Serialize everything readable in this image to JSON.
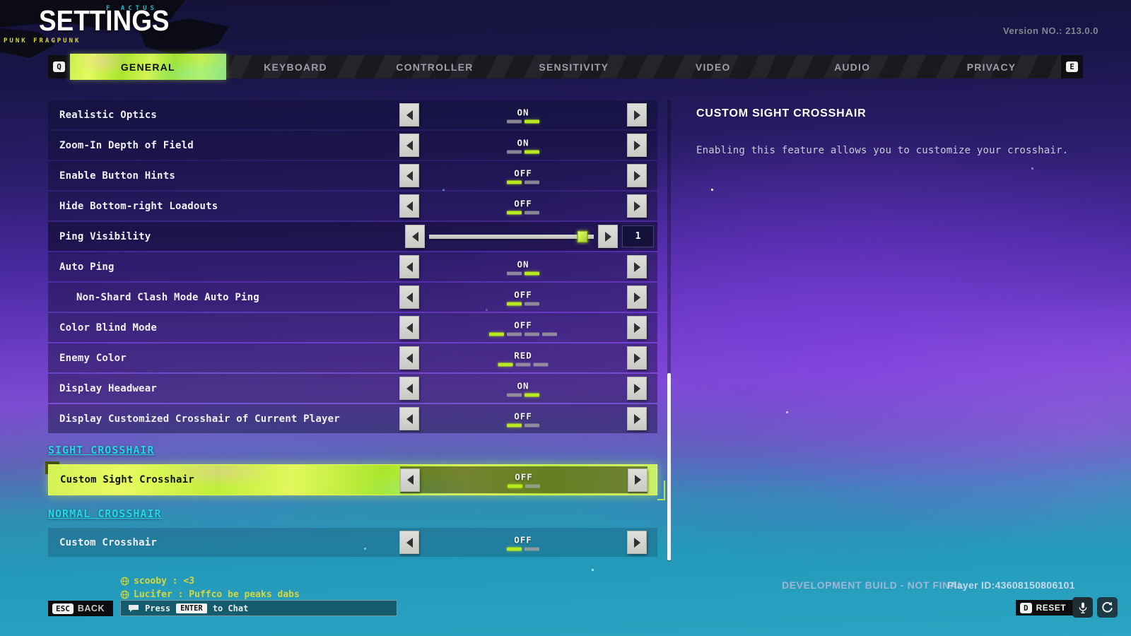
{
  "header": {
    "title": "SETTINGS",
    "version_label": "Version NO.: 213.0.0",
    "decor_left": "PUNK FRAGPUNK",
    "decor_top": "F ACTUS"
  },
  "tabs": {
    "left_key": "Q",
    "right_key": "E",
    "items": [
      {
        "label": "GENERAL",
        "active": true
      },
      {
        "label": "KEYBOARD",
        "active": false
      },
      {
        "label": "CONTROLLER",
        "active": false
      },
      {
        "label": "SENSITIVITY",
        "active": false
      },
      {
        "label": "VIDEO",
        "active": false
      },
      {
        "label": "AUDIO",
        "active": false
      },
      {
        "label": "PRIVACY",
        "active": false
      }
    ]
  },
  "settings": {
    "rows": [
      {
        "type": "toggle",
        "label": "Realistic Optics",
        "value": "ON",
        "options": 2,
        "selected": 1
      },
      {
        "type": "toggle",
        "label": "Zoom-In Depth of Field",
        "value": "ON",
        "options": 2,
        "selected": 1
      },
      {
        "type": "toggle",
        "label": "Enable Button Hints",
        "value": "OFF",
        "options": 2,
        "selected": 0
      },
      {
        "type": "toggle",
        "label": "Hide Bottom-right Loadouts",
        "value": "OFF",
        "options": 2,
        "selected": 0
      },
      {
        "type": "slider",
        "label": "Ping Visibility",
        "value": "1",
        "slider_pos": 0.93,
        "dark": true
      },
      {
        "type": "toggle",
        "label": "Auto Ping",
        "value": "ON",
        "options": 2,
        "selected": 1
      },
      {
        "type": "toggle",
        "label": "Non-Shard Clash Mode Auto Ping",
        "value": "OFF",
        "options": 2,
        "selected": 0,
        "indent": true
      },
      {
        "type": "toggle",
        "label": "Color Blind Mode",
        "value": "OFF",
        "options": 4,
        "selected": 0
      },
      {
        "type": "toggle",
        "label": "Enemy Color",
        "value": "RED",
        "options": 3,
        "selected": 0
      },
      {
        "type": "toggle",
        "label": "Display Headwear",
        "value": "ON",
        "options": 2,
        "selected": 1
      },
      {
        "type": "toggle",
        "label": "Display Customized Crosshair of Current Player",
        "value": "OFF",
        "options": 2,
        "selected": 0
      },
      {
        "type": "section",
        "label": "SIGHT CROSSHAIR"
      },
      {
        "type": "toggle",
        "label": "Custom Sight Crosshair",
        "value": "OFF",
        "options": 2,
        "selected": 0,
        "highlight": true
      },
      {
        "type": "section",
        "label": "NORMAL CROSSHAIR",
        "gap": true
      },
      {
        "type": "toggle",
        "label": "Custom Crosshair",
        "value": "OFF",
        "options": 2,
        "selected": 0,
        "plain": true
      }
    ]
  },
  "info_panel": {
    "title": "CUSTOM SIGHT CROSSHAIR",
    "description": "Enabling this feature allows you to customize your crosshair."
  },
  "chat": {
    "messages": [
      {
        "text": "scooby : <3"
      },
      {
        "text": "Lucifer : Puffco be peaks dabs"
      }
    ],
    "input_hint": {
      "press": "Press",
      "key": "ENTER",
      "suffix": "to Chat"
    }
  },
  "footer": {
    "back": {
      "key": "ESC",
      "label": "BACK"
    },
    "build_label": "DEVELOPMENT BUILD - NOT FINAL",
    "player_id_label": "Player ID:43608150806101",
    "reset": {
      "key": "D",
      "label": "RESET"
    }
  },
  "colors": {
    "accent_lime": "#c3ef3c",
    "section_cyan": "#1fd8e8",
    "chat_yellow": "#d6d63e",
    "enemy_color_value": "RED"
  }
}
